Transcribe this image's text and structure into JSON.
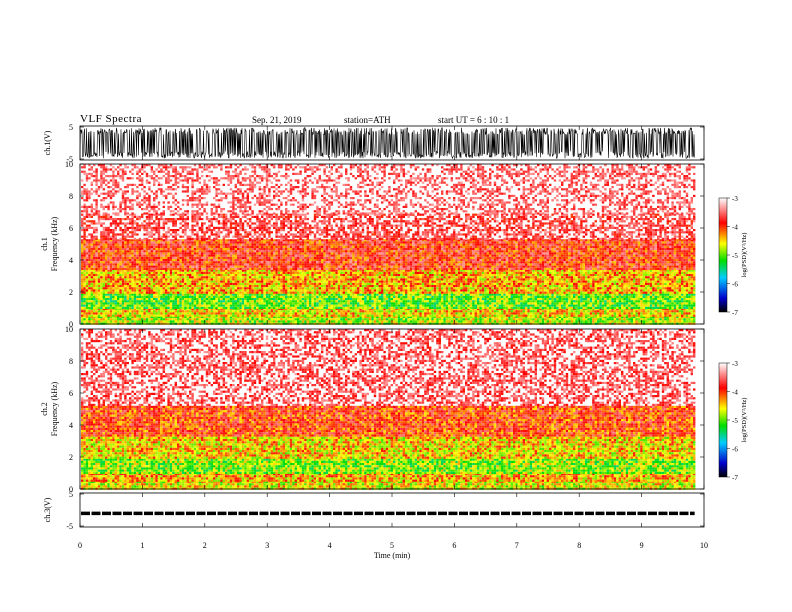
{
  "header": {
    "title": "VLF  Spectra",
    "date": "Sep. 21, 2019",
    "station": "station=ATH",
    "start": "start  UT  =    6  : 10 : 1"
  },
  "chart_data": [
    {
      "type": "line",
      "panel": "ch1-waveform",
      "ylabel": "ch.1(V)",
      "yticks": [
        "5",
        "-5"
      ],
      "ylim": [
        -5,
        5
      ],
      "x_range_min": [
        0,
        9.85
      ],
      "description_values": {
        "amplitude_min": -4.5,
        "amplitude_max": 4.5
      }
    },
    {
      "type": "heatmap",
      "panel": "ch1-spectrogram",
      "ylabel_lines": [
        "ch.1",
        "Frequency  (kHz)"
      ],
      "ylim": [
        0,
        10
      ],
      "yticks": [
        0,
        2,
        4,
        6,
        8,
        10
      ],
      "x_range_min": [
        0,
        9.85
      ],
      "colorbar": {
        "label": "log(PSD)(V²/Hz)",
        "ticks": [
          "-3",
          "-4",
          "-5",
          "-6",
          "-7"
        ],
        "range": [
          -7,
          -3
        ],
        "colors": [
          "#000000",
          "#0000cc",
          "#00ccff",
          "#00dd00",
          "#ffff00",
          "#ff0000",
          "#ffffff"
        ]
      },
      "bands_logPSD": [
        {
          "f": [
            0,
            0.5
          ],
          "level": -4.8
        },
        {
          "f": [
            0.5,
            1
          ],
          "level": -4.5
        },
        {
          "f": [
            1,
            1.9
          ],
          "level": -5.0
        },
        {
          "f": [
            1.9,
            3.4
          ],
          "level": -4.4
        },
        {
          "f": [
            3.4,
            5.3
          ],
          "level": -3.9
        },
        {
          "f": [
            5.3,
            6.9
          ],
          "level": -3.5
        },
        {
          "f": [
            6.9,
            10
          ],
          "level": -3.3
        }
      ]
    },
    {
      "type": "heatmap",
      "panel": "ch2-spectrogram",
      "ylabel_lines": [
        "ch.2",
        "Frequency  (kHz)"
      ],
      "ylim": [
        0,
        10
      ],
      "yticks": [
        0,
        2,
        4,
        6,
        8,
        10
      ],
      "x_range_min": [
        0,
        9.85
      ],
      "colorbar": {
        "label": "log(PSD)(V²/Hz)",
        "ticks": [
          "-3",
          "-4",
          "-5",
          "-6",
          "-7"
        ],
        "range": [
          -7,
          -3
        ],
        "colors": [
          "#000000",
          "#0000cc",
          "#00ccff",
          "#00dd00",
          "#ffff00",
          "#ff0000",
          "#ffffff"
        ]
      },
      "bands_logPSD": [
        {
          "f": [
            0,
            0.5
          ],
          "level": -4.6
        },
        {
          "f": [
            0.5,
            1
          ],
          "level": -4.4
        },
        {
          "f": [
            1,
            1.9
          ],
          "level": -4.9
        },
        {
          "f": [
            1.9,
            3.4
          ],
          "level": -4.5
        },
        {
          "f": [
            3.4,
            5.2
          ],
          "level": -4.0
        },
        {
          "f": [
            5.2,
            10
          ],
          "level": -3.4
        }
      ]
    },
    {
      "type": "line",
      "panel": "ch3-waveform",
      "ylabel": "ch.3(V)",
      "yticks": [
        "5",
        "-5"
      ],
      "ylim": [
        -5,
        5
      ],
      "x_range_min": [
        0,
        9.85
      ],
      "description_values": {
        "level": -1.0
      }
    }
  ],
  "x_axis": {
    "label": "Time  (min)",
    "ticks": [
      "0",
      "1",
      "2",
      "3",
      "4",
      "5",
      "6",
      "7",
      "8",
      "9",
      "10"
    ],
    "xlim": [
      0,
      10
    ]
  }
}
